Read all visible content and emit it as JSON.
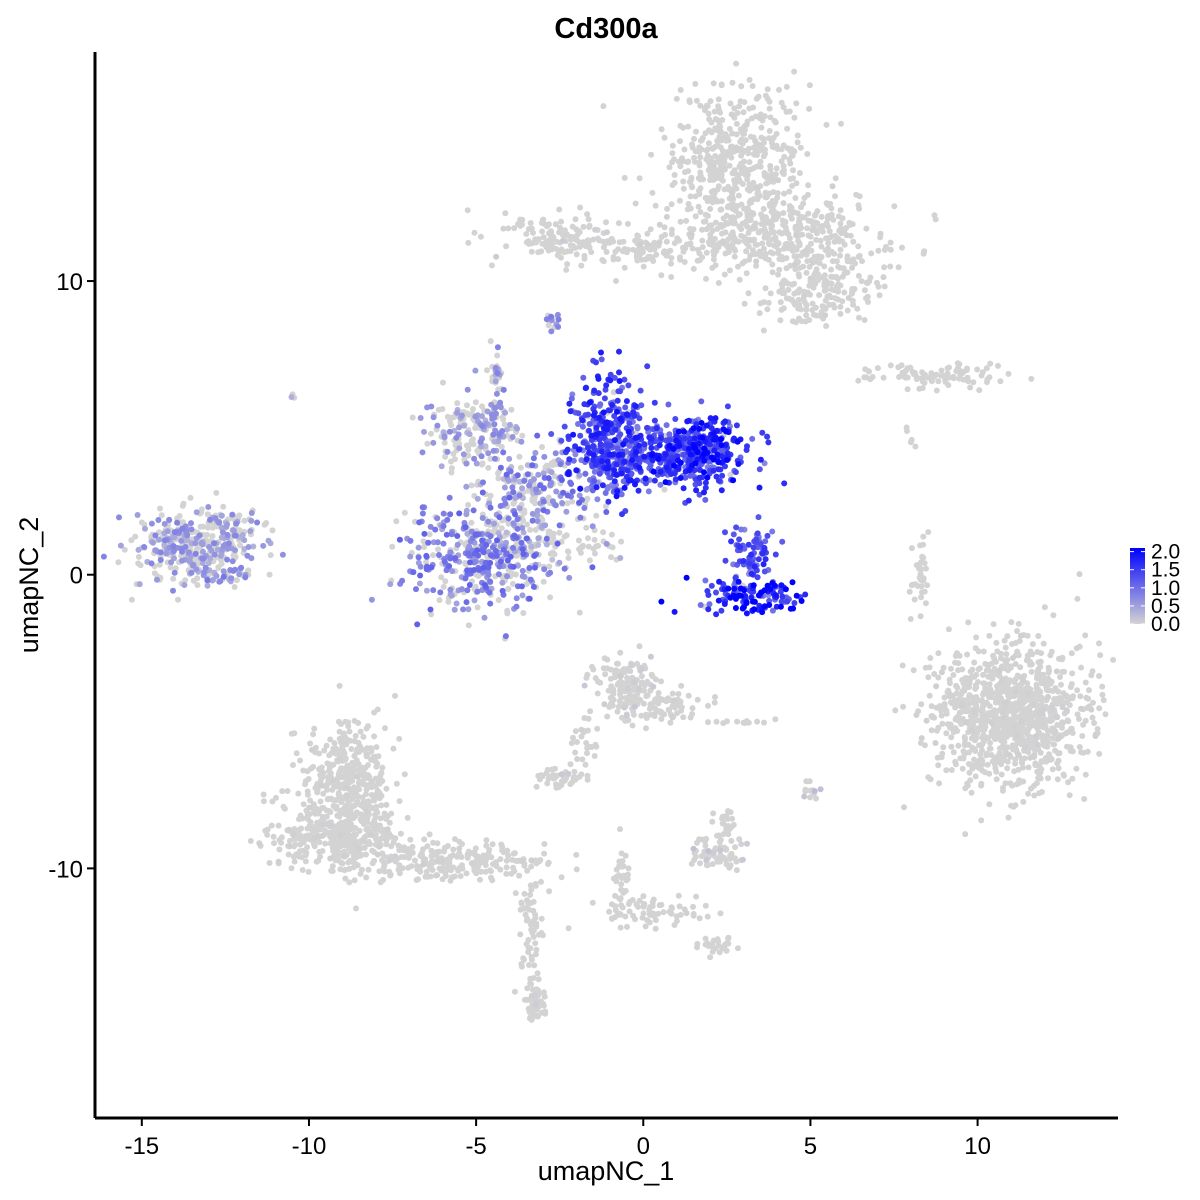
{
  "chart_data": {
    "type": "scatter",
    "title": "Cd300a",
    "xlabel": "umapNC_1",
    "ylabel": "umapNC_2",
    "xlim": [
      -16.4,
      14.2
    ],
    "ylim": [
      -18.5,
      17.8
    ],
    "xticks": [
      -15,
      -10,
      -5,
      0,
      5,
      10
    ],
    "yticks": [
      -10,
      0,
      10
    ],
    "grid": false,
    "point_color_low": "#d3d3d3",
    "point_color_high": "#0000ff",
    "legend": {
      "placement": "right",
      "min": 0.0,
      "max": 2.1,
      "ticks": [
        "2.0",
        "1.5",
        "1.0",
        "0.5",
        "0.0"
      ],
      "tick_values": [
        2.0,
        1.5,
        1.0,
        0.5,
        0.0
      ]
    },
    "clusters": [
      {
        "cx": 2.8,
        "cy": 14.2,
        "sx": 1.0,
        "sy": 1.2,
        "n": 450,
        "expr": 0.02
      },
      {
        "cx": 4.0,
        "cy": 11.6,
        "sx": 1.5,
        "sy": 0.7,
        "n": 380,
        "expr": 0.02
      },
      {
        "cx": 5.3,
        "cy": 9.8,
        "sx": 0.9,
        "sy": 0.6,
        "n": 180,
        "expr": 0.02
      },
      {
        "cx": -0.4,
        "cy": 11.2,
        "sx": 1.7,
        "sy": 0.3,
        "n": 160,
        "expr": 0.05
      },
      {
        "cx": -2.7,
        "cy": 11.6,
        "sx": 0.7,
        "sy": 0.35,
        "n": 90,
        "expr": 0.06
      },
      {
        "cx": -2.7,
        "cy": 8.6,
        "sx": 0.12,
        "sy": 0.18,
        "n": 14,
        "expr": 0.8
      },
      {
        "cx": 8.8,
        "cy": 6.8,
        "sx": 1.2,
        "sy": 0.22,
        "n": 90,
        "expr": 0.02
      },
      {
        "cx": -1.0,
        "cy": 4.7,
        "sx": 0.6,
        "sy": 1.0,
        "n": 320,
        "expr": 1.35
      },
      {
        "cx": 1.7,
        "cy": 4.3,
        "sx": 0.7,
        "sy": 0.6,
        "n": 280,
        "expr": 1.5
      },
      {
        "cx": 0.4,
        "cy": 4.0,
        "sx": 1.2,
        "sy": 0.55,
        "n": 260,
        "expr": 1.3
      },
      {
        "cx": -2.6,
        "cy": 3.1,
        "sx": 0.9,
        "sy": 0.7,
        "n": 130,
        "expr": 0.8
      },
      {
        "cx": -5.1,
        "cy": 4.9,
        "sx": 0.8,
        "sy": 0.6,
        "n": 170,
        "expr": 0.55
      },
      {
        "cx": -4.4,
        "cy": 6.3,
        "sx": 0.12,
        "sy": 1.0,
        "n": 45,
        "expr": 0.6
      },
      {
        "cx": -4.8,
        "cy": 0.6,
        "sx": 1.2,
        "sy": 0.9,
        "n": 420,
        "expr": 0.8
      },
      {
        "cx": -3.9,
        "cy": 2.3,
        "sx": 0.7,
        "sy": 1.0,
        "n": 150,
        "expr": 0.4
      },
      {
        "cx": -2.3,
        "cy": 1.0,
        "sx": 0.9,
        "sy": 0.3,
        "n": 50,
        "expr": 0.3
      },
      {
        "cx": -13.6,
        "cy": 0.9,
        "sx": 0.8,
        "sy": 0.6,
        "n": 300,
        "expr": 0.55
      },
      {
        "cx": -12.4,
        "cy": 1.6,
        "sx": 0.6,
        "sy": 0.4,
        "n": 90,
        "expr": 0.5
      },
      {
        "cx": -12.4,
        "cy": 0.0,
        "sx": 0.3,
        "sy": 0.2,
        "n": 28,
        "expr": 0.7
      },
      {
        "cx": 3.2,
        "cy": 0.8,
        "sx": 0.35,
        "sy": 0.5,
        "n": 80,
        "expr": 1.2
      },
      {
        "cx": 3.5,
        "cy": -0.7,
        "sx": 0.8,
        "sy": 0.3,
        "n": 130,
        "expr": 1.6
      },
      {
        "cx": 11.0,
        "cy": -4.8,
        "sx": 1.2,
        "sy": 1.2,
        "n": 1000,
        "expr": 0.03
      },
      {
        "cx": 8.3,
        "cy": 0.0,
        "sx": 0.12,
        "sy": 0.6,
        "n": 35,
        "expr": 0.01
      },
      {
        "cx": -8.8,
        "cy": -7.2,
        "sx": 0.65,
        "sy": 1.1,
        "n": 400,
        "expr": 0.03
      },
      {
        "cx": -9.2,
        "cy": -8.9,
        "sx": 1.0,
        "sy": 0.55,
        "n": 320,
        "expr": 0.03
      },
      {
        "cx": -5.8,
        "cy": -9.8,
        "sx": 1.4,
        "sy": 0.35,
        "n": 220,
        "expr": 0.04
      },
      {
        "cx": -3.4,
        "cy": -12.1,
        "sx": 0.2,
        "sy": 0.9,
        "n": 60,
        "expr": 0.02
      },
      {
        "cx": -3.2,
        "cy": -14.6,
        "sx": 0.15,
        "sy": 0.35,
        "n": 45,
        "expr": 0.05
      },
      {
        "cx": -0.4,
        "cy": -3.9,
        "sx": 0.5,
        "sy": 0.55,
        "n": 160,
        "expr": 0.08
      },
      {
        "cx": 0.8,
        "cy": -4.6,
        "sx": 0.5,
        "sy": 0.3,
        "n": 50,
        "expr": 0.05
      },
      {
        "cx": -2.6,
        "cy": -6.9,
        "sx": 0.3,
        "sy": 0.18,
        "n": 45,
        "expr": 0.08
      },
      {
        "cx": -1.8,
        "cy": -5.8,
        "sx": 0.2,
        "sy": 0.5,
        "n": 25,
        "expr": 0.02
      },
      {
        "cx": 2.2,
        "cy": -9.6,
        "sx": 0.45,
        "sy": 0.3,
        "n": 70,
        "expr": 0.12
      },
      {
        "cx": 2.5,
        "cy": -8.6,
        "sx": 0.25,
        "sy": 0.3,
        "n": 25,
        "expr": 0.05
      },
      {
        "cx": 0.1,
        "cy": -11.5,
        "sx": 0.9,
        "sy": 0.25,
        "n": 70,
        "expr": 0.02
      },
      {
        "cx": -0.6,
        "cy": -10.3,
        "sx": 0.2,
        "sy": 0.6,
        "n": 30,
        "expr": 0.02
      },
      {
        "cx": 2.2,
        "cy": -12.6,
        "sx": 0.3,
        "sy": 0.15,
        "n": 25,
        "expr": 0.02
      },
      {
        "cx": 5.0,
        "cy": -7.3,
        "sx": 0.15,
        "sy": 0.2,
        "n": 12,
        "expr": 0.2
      },
      {
        "cx": 2.9,
        "cy": -5.0,
        "sx": 0.4,
        "sy": 0.06,
        "n": 12,
        "expr": 0.02
      },
      {
        "cx": -10.5,
        "cy": 6.1,
        "sx": 0.05,
        "sy": 0.05,
        "n": 3,
        "expr": 0.5
      },
      {
        "cx": 7.9,
        "cy": 4.8,
        "sx": 0.15,
        "sy": 0.2,
        "n": 5,
        "expr": 0.02
      }
    ]
  }
}
